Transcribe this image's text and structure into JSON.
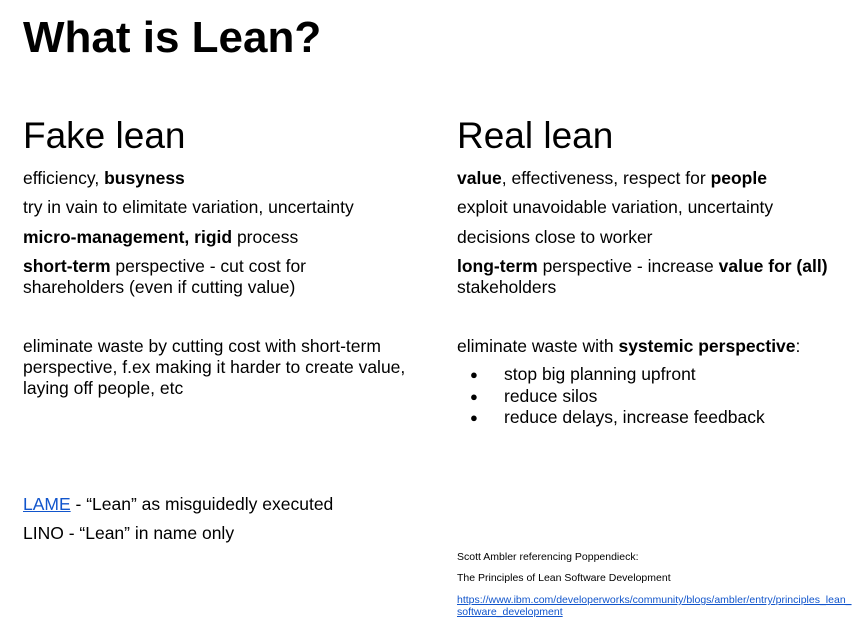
{
  "title": "What is Lean?",
  "fake": {
    "heading": "Fake lean",
    "line1": [
      "efficiency, ",
      "busyness"
    ],
    "line2": "try in vain to elimitate variation, uncertainty",
    "line3": [
      "micro-management, rigid",
      " process"
    ],
    "line4": [
      "short-term",
      " perspective - cut cost for shareholders (even if cutting value)"
    ],
    "waste": "eliminate waste by cutting cost with short-term perspective, f.ex making it harder to create value, laying off people, etc"
  },
  "real": {
    "heading": "Real lean",
    "line1": [
      "value",
      ", effectiveness, respect for ",
      "people"
    ],
    "line2": "exploit unavoidable variation, uncertainty",
    "line3": "decisions close to worker",
    "line4": [
      "long-term",
      " perspective - increase ",
      "value for (all)",
      " stakeholders"
    ],
    "waste": [
      "eliminate waste with ",
      "systemic perspective",
      ":"
    ],
    "bullets": [
      "stop big planning upfront",
      "reduce silos",
      "reduce delays, increase feedback"
    ]
  },
  "lame": {
    "link": "LAME",
    "text": " - “Lean” as misguidedly executed"
  },
  "lino": "LINO - “Lean” in name only",
  "reference": {
    "author": "Scott Ambler referencing Poppendieck:",
    "book": "The Principles of Lean Software Development",
    "url": "https://www.ibm.com/developerworks/community/blogs/ambler/entry/principles_lean_software_development"
  }
}
